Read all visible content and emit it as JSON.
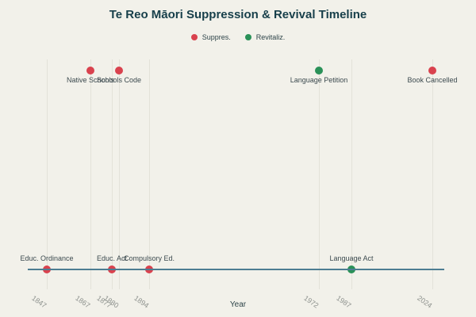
{
  "chart_data": {
    "type": "scatter",
    "title": "Te Reo Māori Suppression & Revival Timeline",
    "xlabel": "Year",
    "legend": [
      {
        "name": "Suppres.",
        "color": "#d9424e"
      },
      {
        "name": "Revitaliz.",
        "color": "#2a9158"
      }
    ],
    "legend_position": "top-center",
    "grid": "vertical-lines-at-event-years",
    "x_ticks": [
      1847,
      1867,
      1877,
      1880,
      1894,
      1972,
      1987,
      2024
    ],
    "xlim": [
      1838,
      2032
    ],
    "events": [
      {
        "year": 1847,
        "label": "Educ. Ordinance",
        "category": "suppression",
        "position": "bottom"
      },
      {
        "year": 1867,
        "label": "Native Schools",
        "category": "suppression",
        "position": "top"
      },
      {
        "year": 1877,
        "label": "Educ. Act",
        "category": "suppression",
        "position": "bottom"
      },
      {
        "year": 1880,
        "label": "Schools Code",
        "category": "suppression",
        "position": "top"
      },
      {
        "year": 1894,
        "label": "Compulsory Ed.",
        "category": "suppression",
        "position": "bottom"
      },
      {
        "year": 1972,
        "label": "Language Petition",
        "category": "revitalization",
        "position": "top"
      },
      {
        "year": 1987,
        "label": "Language Act",
        "category": "revitalization",
        "position": "bottom"
      },
      {
        "year": 2024,
        "label": "Book Cancelled",
        "category": "suppression",
        "position": "top"
      }
    ],
    "colors": {
      "suppression": "#d9424e",
      "revitalization": "#2a9158",
      "timeline_line": "#4d7d92",
      "background": "#f2f1ea",
      "gridline": "#e3e2d9",
      "title_text": "#173f4a",
      "tick_text": "#8e928e",
      "event_label_text": "#3c4a4f"
    }
  }
}
